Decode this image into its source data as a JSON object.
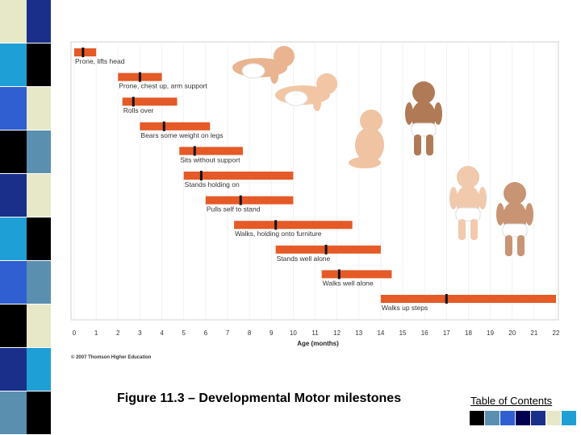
{
  "caption": "Figure 11.3 – Developmental Motor milestones",
  "toc": {
    "label": "Table of Contents",
    "squares": [
      "#000000",
      "#5a8fb0",
      "#2f5fd0",
      "#000050",
      "#1a2f8a",
      "#e6e8c8",
      "#1e9fd6"
    ]
  },
  "stripe_colors": [
    "#e6e8c8",
    "#1a2f8a",
    "#1e9fd6",
    "#000000",
    "#2f5fd0",
    "#e6e8c8",
    "#000000",
    "#5a8fb0",
    "#1a2f8a",
    "#e6e8c8",
    "#1e9fd6",
    "#000000",
    "#2f5fd0",
    "#5a8fb0",
    "#000000",
    "#e6e8c8",
    "#1a2f8a",
    "#1e9fd6",
    "#5a8fb0",
    "#000000"
  ],
  "chart_data": {
    "type": "range-bar",
    "title": "",
    "xlabel": "Age (months)",
    "ylabel": "",
    "xlim": [
      0,
      22
    ],
    "ticks": [
      0,
      1,
      2,
      3,
      4,
      5,
      6,
      7,
      8,
      9,
      10,
      11,
      12,
      13,
      14,
      15,
      16,
      17,
      18,
      19,
      20,
      21,
      22
    ],
    "bar_color": "#e55a26",
    "marker_color": "#111111",
    "copyright": "© 2007 Thomson Higher Education",
    "milestones": [
      {
        "label": "Prone, lifts head",
        "start": 0,
        "end": 1,
        "marker": 0.4
      },
      {
        "label": "Prone, chest up, arm support",
        "start": 2,
        "end": 4,
        "marker": 3
      },
      {
        "label": "Rolls over",
        "start": 2.2,
        "end": 4.7,
        "marker": 2.7
      },
      {
        "label": "Bears some weight on legs",
        "start": 3,
        "end": 6.2,
        "marker": 4.1
      },
      {
        "label": "Sits without support",
        "start": 4.8,
        "end": 7.7,
        "marker": 5.5
      },
      {
        "label": "Stands holding on",
        "start": 5,
        "end": 10,
        "marker": 5.8
      },
      {
        "label": "Pulls self to stand",
        "start": 6,
        "end": 10,
        "marker": 7.6
      },
      {
        "label": "Walks, holding onto furniture",
        "start": 7.3,
        "end": 12.7,
        "marker": 9.2
      },
      {
        "label": "Stands well alone",
        "start": 9.2,
        "end": 14,
        "marker": 11.5
      },
      {
        "label": "Walks well alone",
        "start": 11.3,
        "end": 14.5,
        "marker": 12.1
      },
      {
        "label": "Walks up steps",
        "start": 14,
        "end": 22,
        "marker": 17
      }
    ]
  }
}
